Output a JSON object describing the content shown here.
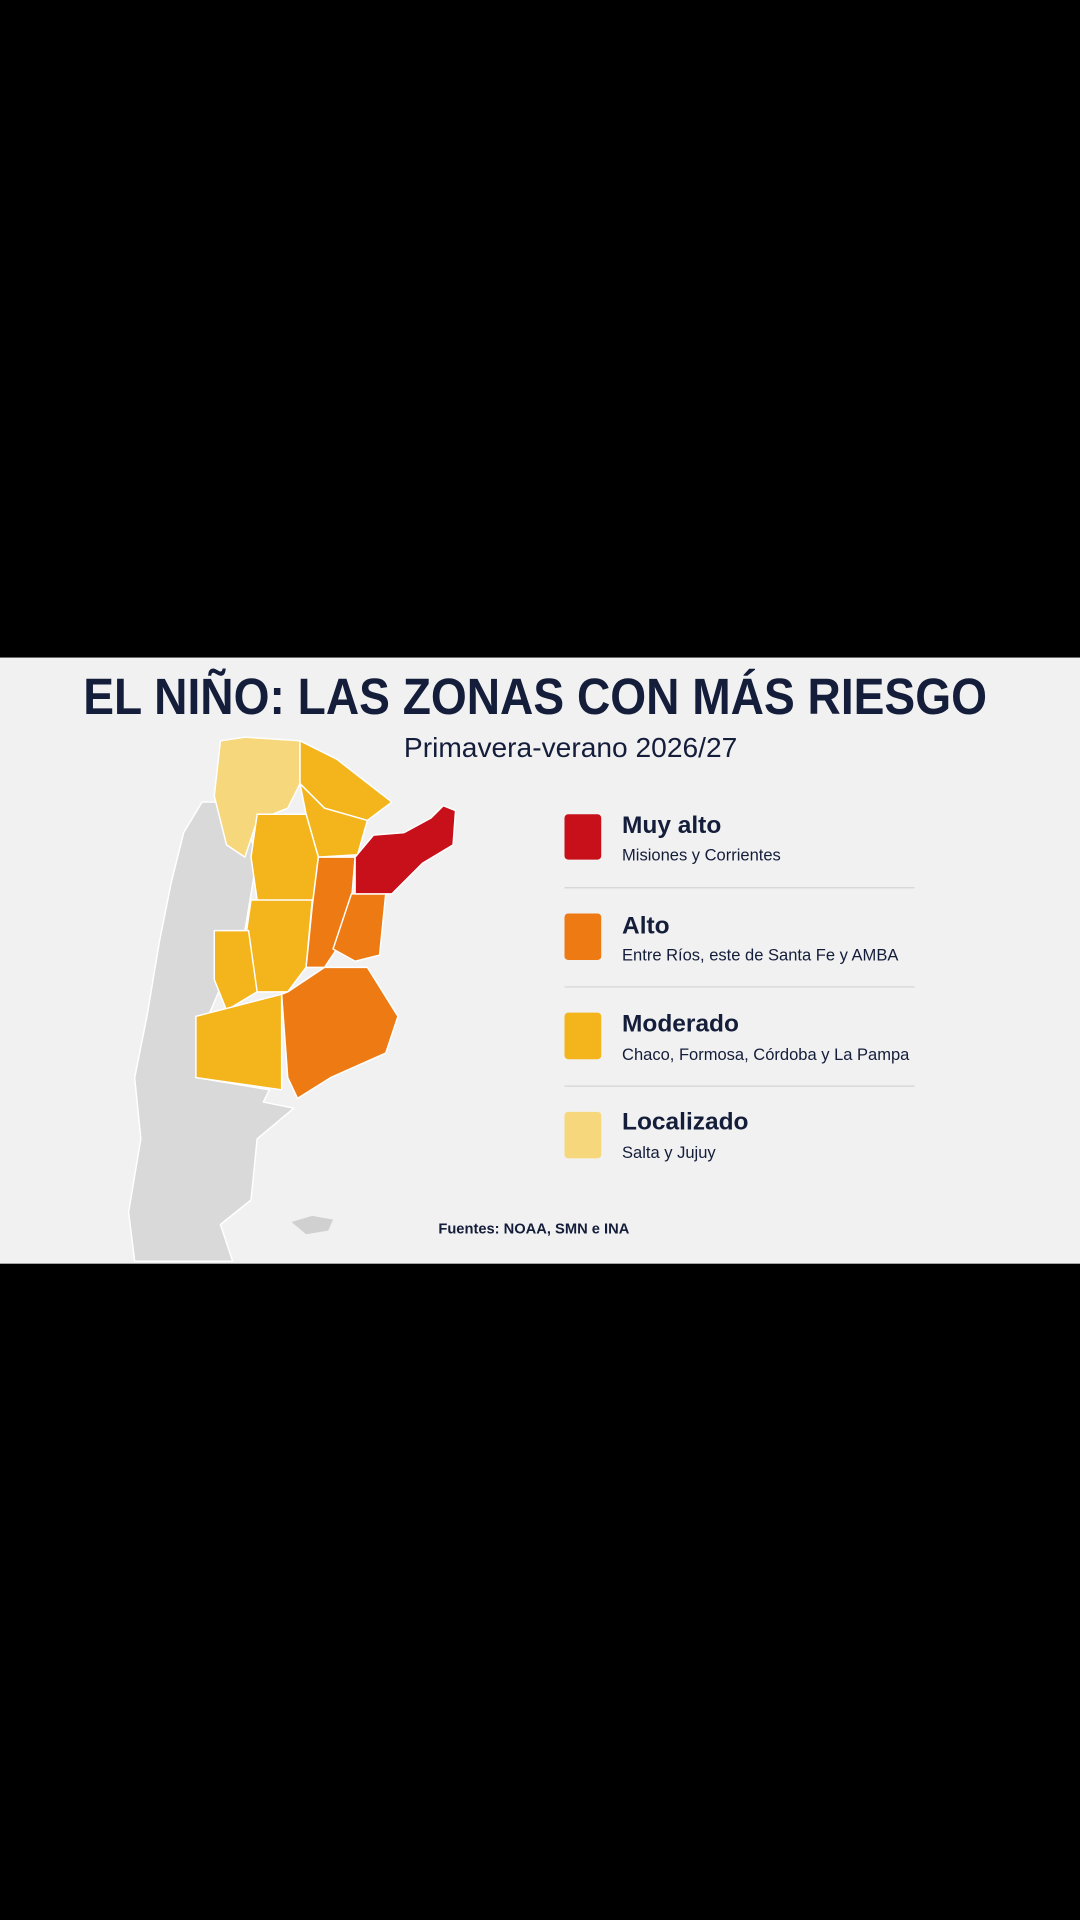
{
  "title": "EL NIÑO: LAS ZONAS CON MÁS RIESGO",
  "subtitle": "Primavera-verano 2026/27",
  "legend": [
    {
      "label": "Muy alto",
      "description": "Misiones y Corrientes",
      "color": "#c8101a"
    },
    {
      "label": "Alto",
      "description": "Entre Ríos, este de Santa Fe y AMBA",
      "color": "#ee7a14"
    },
    {
      "label": "Moderado",
      "description": "Chaco, Formosa, Córdoba y La Pampa",
      "color": "#f4b41c"
    },
    {
      "label": "Localizado",
      "description": "Salta y Jujuy",
      "color": "#f7d77c"
    }
  ],
  "source": "Fuentes: NOAA, SMN e INA"
}
